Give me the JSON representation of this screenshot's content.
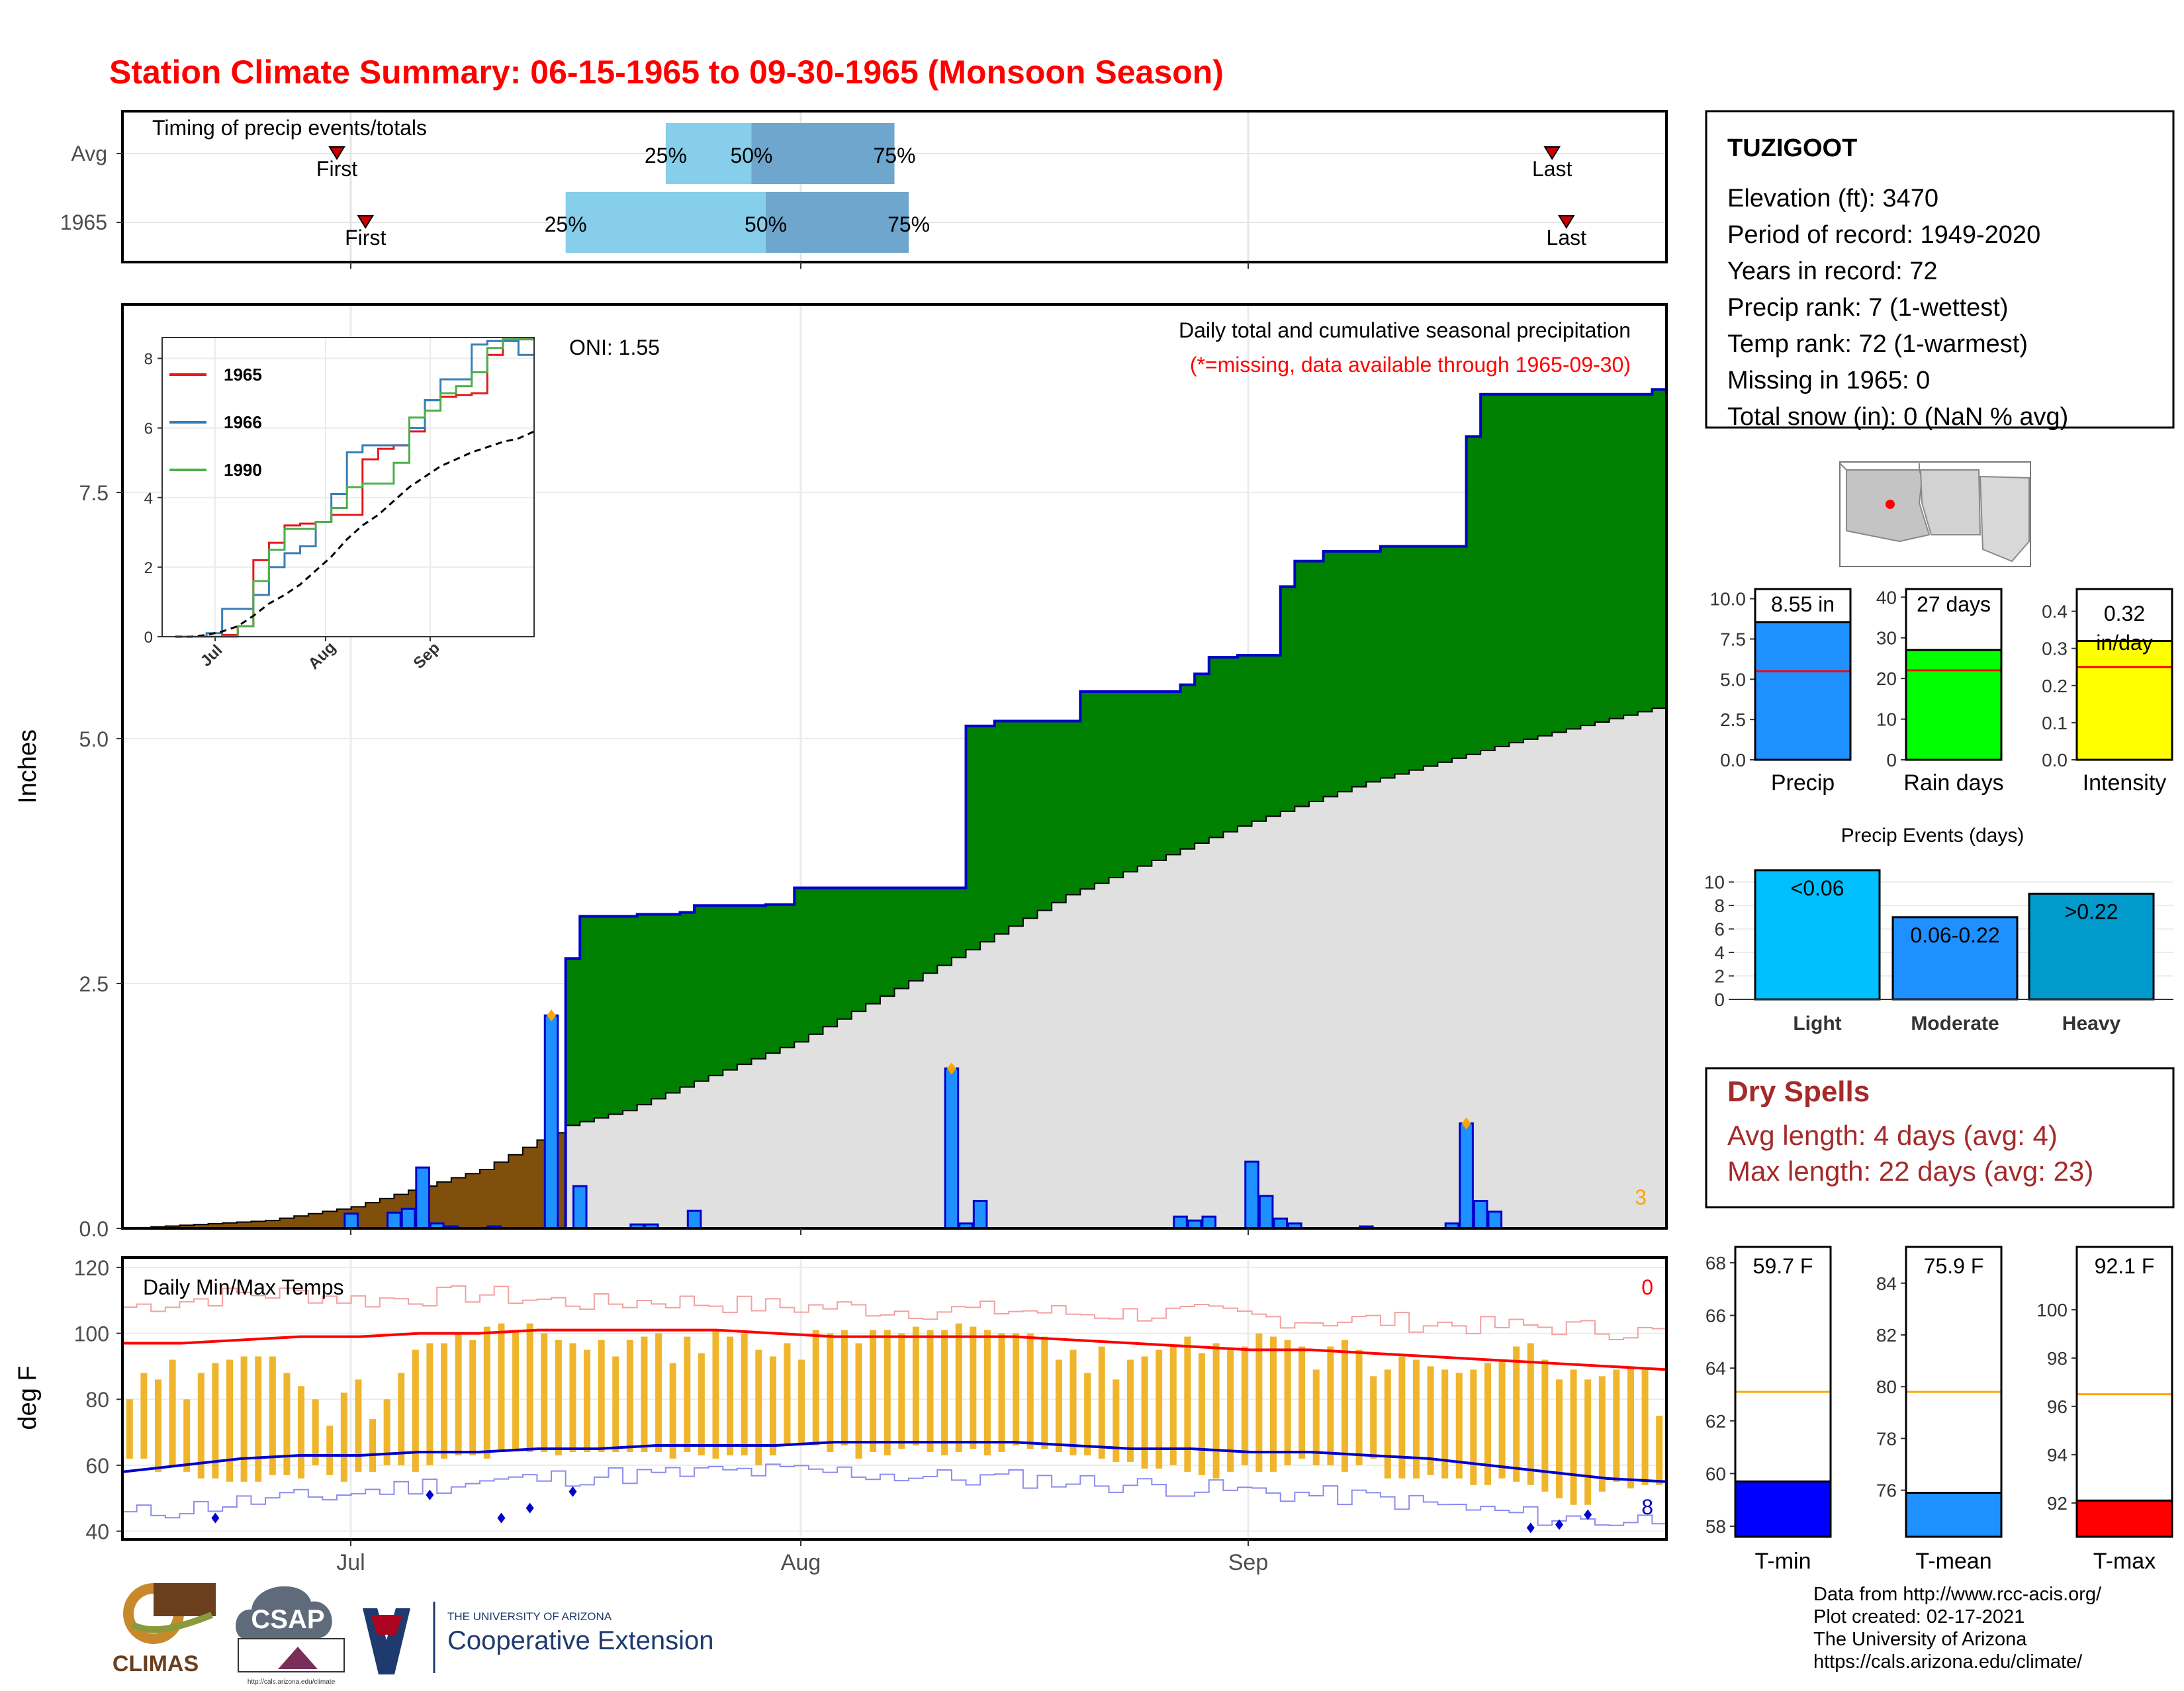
{
  "title": "Station Climate Summary: 06-15-1965 to 09-30-1965 (Monsoon Season)",
  "colors": {
    "title": "#ff0000",
    "frame": "#000000",
    "green_fill": "#008000",
    "brown_fill": "#7f4f0b",
    "gray_fill": "#e0e0e0",
    "bar_blue": "#1e90ff",
    "line_blue": "#0000cd",
    "light_blue": "#87ceeb",
    "mid_blue": "#6ea6cd",
    "orange": "#ffa500",
    "temp_bar": "#efb52c",
    "red": "#ff0000",
    "dark_red": "#a52a2a"
  },
  "timing": {
    "title": "Timing of precip events/totals",
    "rows": [
      {
        "label": "Avg",
        "first": "2020-06-30",
        "p25": "2020-07-23",
        "p50": "2020-07-29",
        "p75": "2020-08-08",
        "last": "2020-09-23",
        "first_label": "First",
        "last_label": "Last",
        "p25_label": "25%",
        "p50_label": "50%",
        "p75_label": "75%"
      },
      {
        "label": "1965",
        "first": "2020-07-02",
        "p25": "2020-07-16",
        "p50": "2020-07-30",
        "p75": "2020-08-09",
        "last": "2020-09-24",
        "first_label": "First",
        "last_label": "Last",
        "p25_label": "25%",
        "p50_label": "50%",
        "p75_label": "75%"
      }
    ]
  },
  "precip_panel": {
    "ylabel": "Inches",
    "oni": "ONI: 1.55",
    "legend_title": "Daily total and cumulative seasonal precipitation",
    "missing_note": "(*=missing, data available through 1965-09-30)",
    "corner_count": "3",
    "yticks": [
      "0.0",
      "2.5",
      "5.0",
      "7.5"
    ],
    "xticks": [
      "Jul",
      "Aug",
      "Sep"
    ]
  },
  "chart_data": [
    {
      "type": "area",
      "title": "Daily total and cumulative seasonal precipitation",
      "ylabel": "Inches",
      "ylim": [
        0,
        9.3
      ],
      "x_range": [
        "1965-06-15",
        "1965-09-30"
      ],
      "series": [
        {
          "name": "cumulative_1965",
          "x": [
            "06-15",
            "07-15",
            "07-16",
            "07-17",
            "07-21",
            "07-24",
            "07-25",
            "07-30",
            "08-01",
            "08-12",
            "08-13",
            "08-15",
            "08-21",
            "08-28",
            "08-29",
            "08-30",
            "09-01",
            "09-04",
            "09-05",
            "09-07",
            "09-11",
            "09-16",
            "09-17",
            "09-18",
            "09-30"
          ],
          "values": [
            0,
            0,
            2.75,
            3.18,
            3.2,
            3.22,
            3.29,
            3.3,
            3.47,
            3.47,
            5.12,
            5.17,
            5.47,
            5.54,
            5.65,
            5.82,
            5.84,
            6.54,
            6.8,
            6.9,
            6.95,
            6.95,
            8.07,
            8.5,
            8.55
          ]
        },
        {
          "name": "average_cumulative",
          "x": [
            "06-15",
            "06-25",
            "07-01",
            "07-10",
            "07-16",
            "07-20",
            "07-25",
            "08-01",
            "08-10",
            "08-20",
            "09-01",
            "09-10",
            "09-20",
            "09-30"
          ],
          "values": [
            0,
            0.08,
            0.22,
            0.6,
            1.05,
            1.2,
            1.5,
            1.9,
            2.6,
            3.4,
            4.1,
            4.55,
            4.95,
            5.3
          ]
        },
        {
          "name": "daily_1965",
          "x": [
            "07-01",
            "07-04",
            "07-05",
            "07-06",
            "07-07",
            "07-08",
            "07-11",
            "07-15",
            "07-17",
            "07-21",
            "07-22",
            "07-25",
            "08-12",
            "08-13",
            "08-14",
            "08-28",
            "08-29",
            "08-30",
            "09-02",
            "09-03",
            "09-04",
            "09-05",
            "09-10",
            "09-16",
            "09-17",
            "09-18",
            "09-19"
          ],
          "values": [
            0.15,
            0.16,
            0.2,
            0.62,
            0.05,
            0.02,
            0.02,
            2.17,
            0.43,
            0.04,
            0.04,
            0.18,
            1.63,
            0.05,
            0.28,
            0.12,
            0.08,
            0.12,
            0.68,
            0.33,
            0.1,
            0.05,
            0.02,
            0.05,
            1.07,
            0.28,
            0.17
          ]
        }
      ]
    },
    {
      "type": "line",
      "title": "",
      "ylim": [
        0,
        8.6
      ],
      "xticks": [
        "Jul",
        "Aug",
        "Sep"
      ],
      "yticks": [
        0,
        2,
        4,
        6,
        8
      ],
      "series": [
        {
          "name": "1965",
          "values": [
            0,
            0,
            0,
            0.05,
            0.3,
            2.2,
            2.7,
            3.2,
            3.25,
            3.3,
            3.5,
            3.5,
            5.1,
            5.4,
            5.5,
            5.9,
            6.8,
            6.9,
            6.95,
            7.0,
            8.1,
            8.5,
            8.55,
            8.55
          ]
        },
        {
          "name": "1966",
          "values": [
            0,
            0,
            0.1,
            0.8,
            0.8,
            1.2,
            2.0,
            2.4,
            2.6,
            3.3,
            4.1,
            5.3,
            5.5,
            5.5,
            5.5,
            6.0,
            6.8,
            7.4,
            7.4,
            8.4,
            8.5,
            8.5,
            8.1,
            8.1
          ]
        },
        {
          "name": "1990",
          "values": [
            0,
            0,
            0,
            0,
            0.3,
            1.6,
            2.5,
            3.1,
            3.1,
            3.3,
            3.7,
            4.3,
            4.4,
            4.4,
            5.0,
            6.3,
            6.5,
            7.0,
            7.2,
            7.6,
            8.3,
            8.55,
            8.55,
            8.55
          ]
        },
        {
          "name": "average",
          "values": [
            0,
            0,
            0.05,
            0.15,
            0.3,
            0.6,
            0.95,
            1.2,
            1.5,
            1.9,
            2.3,
            2.8,
            3.2,
            3.5,
            3.9,
            4.3,
            4.6,
            4.9,
            5.1,
            5.3,
            5.45,
            5.6,
            5.7,
            5.9
          ]
        }
      ]
    },
    {
      "type": "bar",
      "title": "",
      "categories": [
        "Precip",
        "Rain days",
        "Intensity"
      ],
      "values": [
        8.55,
        27,
        0.32
      ],
      "averages": [
        5.5,
        22,
        0.25
      ],
      "labels": [
        "8.55 in",
        "27 days",
        "0.32 in/day"
      ],
      "ylims": [
        [
          0,
          10.6
        ],
        [
          0,
          42
        ],
        [
          0,
          0.46
        ]
      ],
      "yticks": [
        [
          "0.0",
          "2.5",
          "5.0",
          "7.5",
          "10.0"
        ],
        [
          "0",
          "10",
          "20",
          "30",
          "40"
        ],
        [
          "0.0",
          "0.1",
          "0.2",
          "0.3",
          "0.4"
        ]
      ]
    },
    {
      "type": "bar",
      "title": "Precip Events (days)",
      "categories": [
        "Light",
        "Moderate",
        "Heavy"
      ],
      "labels": [
        "<0.06",
        "0.06-0.22",
        ">0.22"
      ],
      "values": [
        11,
        7,
        9
      ],
      "ylim": [
        0,
        11.5
      ],
      "yticks": [
        0,
        2,
        4,
        6,
        8,
        10
      ]
    },
    {
      "type": "bar",
      "title": "",
      "categories": [
        "T-min",
        "T-mean",
        "T-max"
      ],
      "values": [
        59.7,
        75.9,
        92.1
      ],
      "averages": [
        63.1,
        79.8,
        96.5
      ],
      "labels": [
        "59.7 F",
        "75.9 F",
        "92.1 F"
      ],
      "ylims": [
        [
          57.6,
          68.6
        ],
        [
          74.2,
          85.4
        ],
        [
          90.6,
          102.6
        ]
      ],
      "yticks": [
        [
          "58",
          "60",
          "62",
          "64",
          "66",
          "68"
        ],
        [
          "76",
          "78",
          "80",
          "82",
          "84"
        ],
        [
          "92",
          "94",
          "96",
          "98",
          "100"
        ]
      ]
    },
    {
      "type": "line",
      "title": "Daily Min/Max Temps",
      "ylabel": "deg F",
      "ylim": [
        37.5,
        123
      ],
      "yticks": [
        40,
        60,
        80,
        100,
        120
      ],
      "corner_max": "0",
      "corner_min": "8",
      "series": [
        {
          "name": "daily_max",
          "values": [
            80,
            88,
            86,
            92,
            80,
            88,
            91,
            92,
            93,
            93,
            93,
            88,
            84,
            80,
            72,
            82,
            86,
            74,
            80,
            88,
            95,
            97,
            97,
            100,
            98,
            102,
            103,
            101,
            103,
            100,
            98,
            97,
            95,
            98,
            93,
            98,
            99,
            100,
            91,
            99,
            94,
            101,
            99,
            100,
            95,
            93,
            97,
            92,
            101,
            100,
            101,
            97,
            101,
            101,
            100,
            102,
            101,
            101,
            103,
            102,
            101,
            100,
            100,
            100,
            99,
            92,
            95,
            88,
            96,
            86,
            92,
            93,
            95,
            96,
            99,
            94,
            97,
            95,
            96,
            100,
            99,
            98,
            96,
            89,
            96,
            98,
            95,
            87,
            89,
            93,
            92,
            90,
            89,
            88,
            89,
            91,
            92,
            96,
            97,
            92,
            86,
            89,
            86,
            87,
            89,
            90,
            89,
            75
          ]
        },
        {
          "name": "daily_min",
          "values": [
            62,
            62,
            58,
            60,
            58,
            56,
            56,
            55,
            55,
            55,
            57,
            57,
            56,
            60,
            57,
            55,
            58,
            58,
            60,
            60,
            58,
            60,
            62,
            63,
            63,
            62,
            64,
            65,
            64,
            64,
            63,
            64,
            64,
            64,
            64,
            64,
            64,
            64,
            62,
            64,
            63,
            62,
            63,
            63,
            60,
            63,
            66,
            66,
            66,
            64,
            66,
            62,
            64,
            63,
            65,
            66,
            64,
            63,
            64,
            65,
            63,
            64,
            66,
            65,
            65,
            64,
            63,
            63,
            62,
            61,
            61,
            59,
            59,
            60,
            58,
            57,
            56,
            58,
            60,
            58,
            58,
            60,
            62,
            60,
            60,
            58,
            60,
            62,
            56,
            56,
            56,
            57,
            56,
            56,
            54,
            54,
            56,
            55,
            54,
            52,
            50,
            48,
            48,
            52,
            55,
            53,
            54,
            54
          ]
        },
        {
          "name": "avg_max",
          "values": [
            97,
            97,
            98,
            99,
            99,
            100,
            100,
            101,
            101,
            101,
            101,
            100,
            99,
            99,
            99,
            99,
            98,
            97,
            96,
            95,
            95,
            94,
            93,
            92,
            91,
            90,
            89
          ]
        },
        {
          "name": "avg_min",
          "values": [
            58,
            60,
            62,
            63,
            63,
            64,
            64,
            65,
            65,
            66,
            66,
            66,
            67,
            67,
            67,
            67,
            66,
            65,
            65,
            64,
            64,
            63,
            62,
            60,
            58,
            56,
            55
          ]
        },
        {
          "name": "record_max",
          "values": [
            108,
            110,
            112,
            112,
            110,
            111,
            112,
            110,
            109,
            110,
            109,
            108,
            108,
            107,
            107,
            107,
            106,
            106,
            106,
            105,
            104,
            104,
            103,
            102,
            102,
            101,
            100
          ]
        },
        {
          "name": "record_min",
          "values": [
            45,
            47,
            49,
            50,
            52,
            54,
            55,
            56,
            57,
            57,
            58,
            58,
            58,
            57,
            56,
            56,
            55,
            54,
            53,
            52,
            51,
            50,
            48,
            46,
            44,
            43,
            44
          ]
        }
      ]
    }
  ],
  "station": {
    "name": "TUZIGOOT",
    "lines": [
      "Elevation (ft): 3470",
      "Period of record: 1949-2020",
      "Years in record: 72",
      "Precip rank: 7 (1-wettest)",
      "Temp rank: 72 (1-warmest)",
      "Missing in 1965: 0",
      "Total snow (in): 0 (NaN % avg)"
    ]
  },
  "dry_spells": {
    "title": "Dry Spells",
    "avg": "Avg length: 4 days (avg: 4)",
    "max": "Max length: 22 days (avg: 23)"
  },
  "credits": {
    "lines": [
      "Data from http://www.rcc-acis.org/",
      "Plot created: 02-17-2021",
      "The University of Arizona",
      "https://cals.arizona.edu/climate/"
    ]
  },
  "logos": {
    "climas": "CLIMAS",
    "csap": "CSAP",
    "csap_url": "http://cals.arizona.edu/climate",
    "ua_small": "THE UNIVERSITY OF ARIZONA",
    "ua_big": "Cooperative Extension"
  }
}
